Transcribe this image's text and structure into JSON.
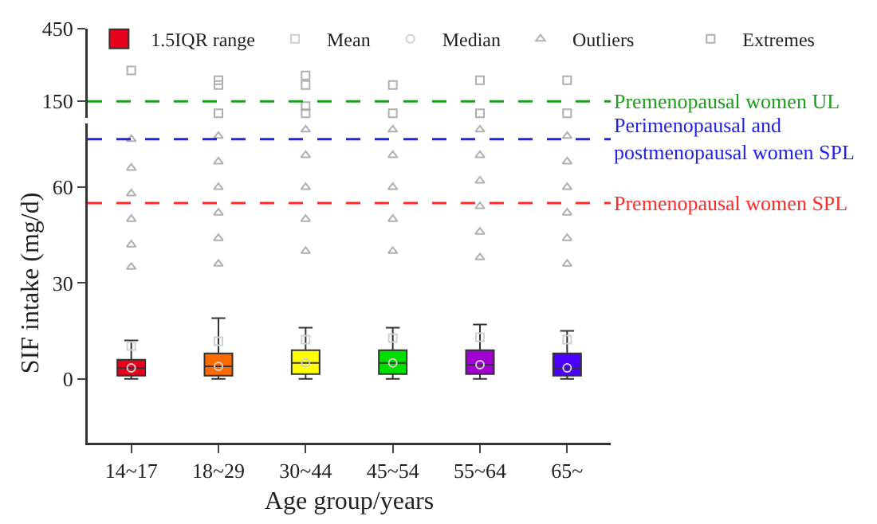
{
  "chart_data": [
    {
      "type": "box",
      "categories": [
        "14~17",
        "18~29",
        "30~44",
        "45~54",
        "55~64",
        "65~"
      ],
      "ylim": [
        80,
        450
      ],
      "yticks": [
        150,
        450
      ],
      "tick_labels": "y",
      "legend": "top right",
      "ref_lines": [
        {
          "axis": "y",
          "value": 150,
          "label": "Premenopausal women UL",
          "color": "#1e9e1e",
          "line_style": "dashed"
        }
      ],
      "series": [
        {
          "name": "Extremes",
          "type": "scatter",
          "marker": "square",
          "color": "#b0b0b0",
          "x": [
            "14~17",
            "18~29",
            "18~29",
            "18~29",
            "30~44",
            "30~44",
            "30~44",
            "30~44",
            "45~54",
            "45~54",
            "55~64",
            "55~64",
            "65~",
            "65~"
          ],
          "values": [
            277,
            100,
            217,
            237,
            100,
            130,
            217,
            257,
            100,
            217,
            100,
            237,
            100,
            237
          ]
        }
      ]
    },
    {
      "type": "box",
      "categories": [
        "14~17",
        "18~29",
        "30~44",
        "45~54",
        "55~64",
        "65~"
      ],
      "ylim": [
        -20,
        80
      ],
      "yticks": [
        0,
        30,
        60
      ],
      "xlabel": "Age group/years",
      "ylabel": "SIF intake (mg/d)",
      "legend": "top",
      "ref_lines": [
        {
          "axis": "y",
          "value": 75,
          "label": "Perimenopausal and\npostmenopausal women SPL",
          "color": "#2323e6",
          "line_style": "dashed"
        },
        {
          "axis": "y",
          "value": 55,
          "label": "Premenopausal women SPL",
          "color": "#ff2a2a",
          "line_style": "dashed"
        }
      ],
      "series": [
        {
          "name": "1.5IQR range",
          "type": "box",
          "colors": [
            "#e8001c",
            "#ff6a00",
            "#ffff00",
            "#00e000",
            "#a000d0",
            "#4b00ff"
          ],
          "boxes": [
            {
              "low": 0,
              "q1": 1,
              "median": 3.4,
              "q3": 6,
              "high": 12
            },
            {
              "low": 0,
              "q1": 1,
              "median": 3.9,
              "q3": 8,
              "high": 19
            },
            {
              "low": 0,
              "q1": 1.5,
              "median": 5,
              "q3": 9,
              "high": 16
            },
            {
              "low": 0,
              "q1": 1.5,
              "median": 5,
              "q3": 9,
              "high": 16
            },
            {
              "low": 0,
              "q1": 1.5,
              "median": 4.4,
              "q3": 9,
              "high": 17
            },
            {
              "low": 0,
              "q1": 1,
              "median": 3.4,
              "q3": 8,
              "high": 15
            }
          ]
        },
        {
          "name": "Mean",
          "type": "scatter",
          "marker": "square",
          "color": "#d0d0d0",
          "values": [
            10.3,
            11.8,
            12.3,
            12.8,
            13,
            12.3
          ]
        },
        {
          "name": "Median",
          "type": "scatter",
          "marker": "circle",
          "color": "#d0d0d0",
          "values": [
            3.4,
            3.9,
            5,
            5,
            4.4,
            3.4
          ]
        },
        {
          "name": "Outliers",
          "type": "scatter",
          "marker": "triangle",
          "color": "#b0b0b0",
          "x": [
            "14~17",
            "14~17",
            "14~17",
            "14~17",
            "14~17",
            "14~17",
            "18~29",
            "18~29",
            "18~29",
            "18~29",
            "18~29",
            "18~29",
            "30~44",
            "30~44",
            "30~44",
            "30~44",
            "30~44",
            "45~54",
            "45~54",
            "45~54",
            "45~54",
            "45~54",
            "55~64",
            "55~64",
            "55~64",
            "55~64",
            "55~64",
            "55~64",
            "65~",
            "65~",
            "65~",
            "65~",
            "65~",
            "65~"
          ],
          "values": [
            35,
            42,
            50,
            58,
            66,
            75,
            36,
            44,
            52,
            60,
            68,
            76,
            40,
            50,
            60,
            70,
            78,
            40,
            50,
            60,
            70,
            78,
            38,
            46,
            54,
            62,
            70,
            78,
            36,
            44,
            52,
            60,
            68,
            76
          ]
        }
      ]
    }
  ]
}
